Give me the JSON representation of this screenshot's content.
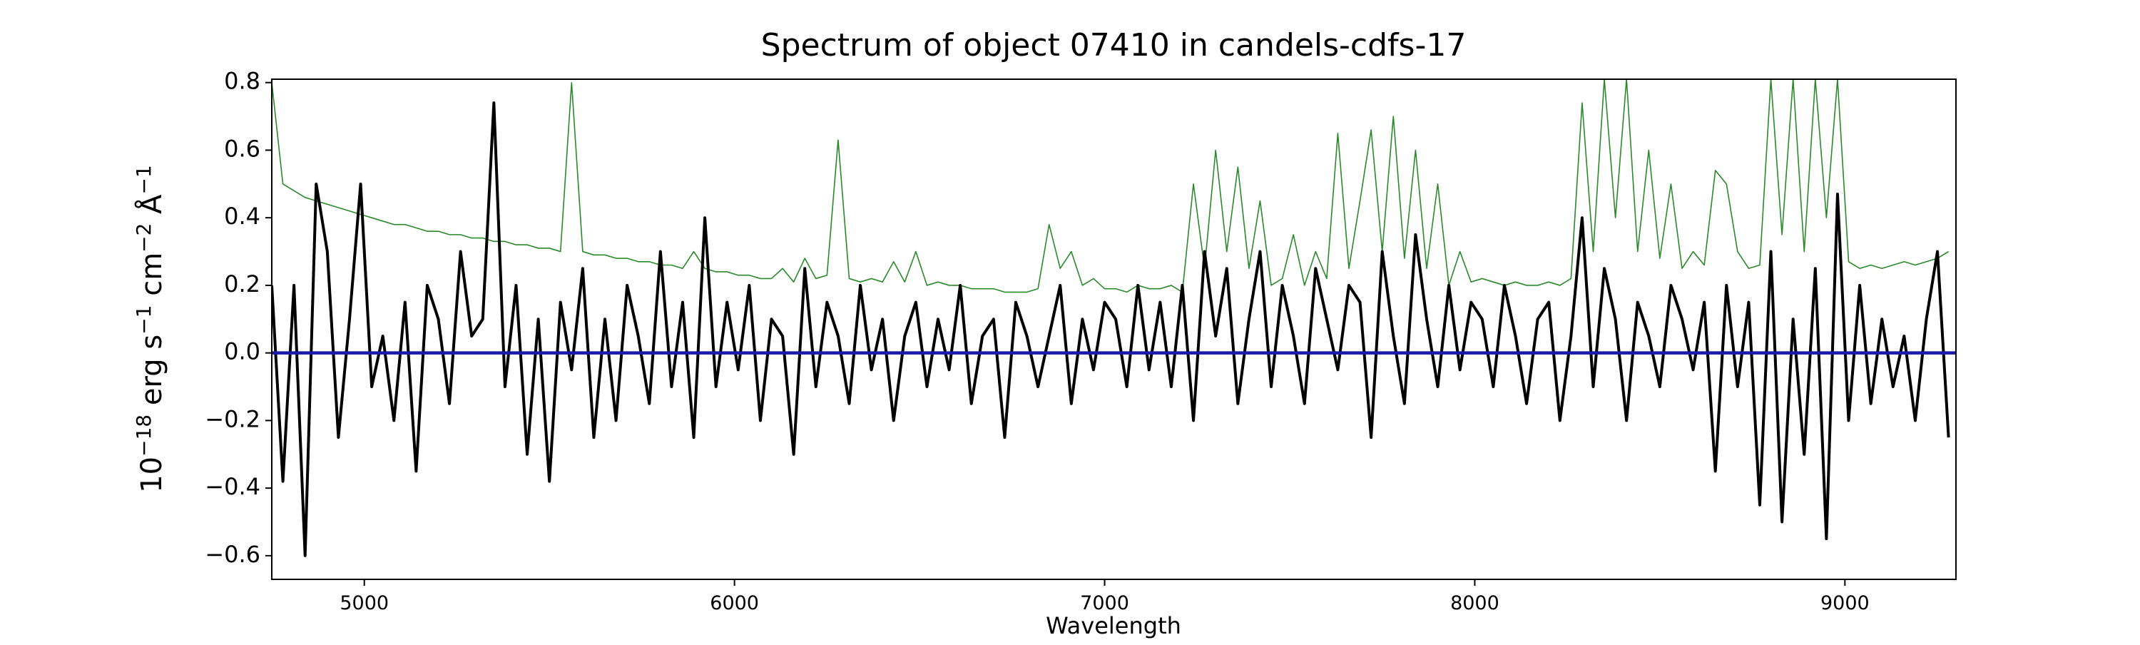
{
  "chart_data": {
    "type": "line",
    "title": "Spectrum of object 07410 in candels-cdfs-17",
    "xlabel": "Wavelength",
    "ylabel": [
      "10",
      "−18",
      " erg s",
      "−1",
      " cm",
      "−2",
      " Å",
      "−1"
    ],
    "xlim": [
      4750,
      9300
    ],
    "ylim": [
      -0.67,
      0.81
    ],
    "xticks": [
      5000,
      6000,
      7000,
      8000,
      9000
    ],
    "yticks": [
      {
        "value": -0.6,
        "label": "−0.6"
      },
      {
        "value": -0.4,
        "label": "−0.4"
      },
      {
        "value": -0.2,
        "label": "−0.2"
      },
      {
        "value": 0,
        "label": "0.0"
      },
      0.2,
      0.4,
      0.6,
      0.8
    ],
    "grid": false,
    "x": [
      4750,
      4780,
      4810,
      4840,
      4870,
      4900,
      4930,
      4960,
      4990,
      5020,
      5050,
      5080,
      5110,
      5140,
      5170,
      5200,
      5230,
      5260,
      5290,
      5320,
      5350,
      5380,
      5410,
      5440,
      5470,
      5500,
      5530,
      5560,
      5590,
      5620,
      5650,
      5680,
      5710,
      5740,
      5770,
      5800,
      5830,
      5860,
      5890,
      5920,
      5950,
      5980,
      6010,
      6040,
      6070,
      6100,
      6130,
      6160,
      6190,
      6220,
      6250,
      6280,
      6310,
      6340,
      6370,
      6400,
      6430,
      6460,
      6490,
      6520,
      6550,
      6580,
      6610,
      6640,
      6670,
      6700,
      6730,
      6760,
      6790,
      6820,
      6850,
      6880,
      6910,
      6940,
      6970,
      7000,
      7030,
      7060,
      7090,
      7120,
      7150,
      7180,
      7210,
      7240,
      7270,
      7300,
      7330,
      7360,
      7390,
      7420,
      7450,
      7480,
      7510,
      7540,
      7570,
      7600,
      7630,
      7660,
      7690,
      7720,
      7750,
      7780,
      7810,
      7840,
      7870,
      7900,
      7930,
      7960,
      7990,
      8020,
      8050,
      8080,
      8110,
      8140,
      8170,
      8200,
      8230,
      8260,
      8290,
      8320,
      8350,
      8380,
      8410,
      8440,
      8470,
      8500,
      8530,
      8560,
      8590,
      8620,
      8650,
      8680,
      8710,
      8740,
      8770,
      8800,
      8830,
      8860,
      8890,
      8920,
      8950,
      8980,
      9010,
      9040,
      9070,
      9100,
      9130,
      9160,
      9190,
      9220,
      9250,
      9280
    ],
    "series": [
      {
        "color": "#2a8a2a",
        "width": 1.6,
        "values": [
          0.8,
          0.5,
          0.48,
          0.46,
          0.45,
          0.44,
          0.43,
          0.42,
          0.41,
          0.4,
          0.39,
          0.38,
          0.38,
          0.37,
          0.36,
          0.36,
          0.35,
          0.35,
          0.34,
          0.34,
          0.33,
          0.33,
          0.32,
          0.32,
          0.31,
          0.31,
          0.3,
          0.8,
          0.3,
          0.29,
          0.29,
          0.28,
          0.28,
          0.27,
          0.27,
          0.26,
          0.26,
          0.25,
          0.3,
          0.25,
          0.24,
          0.24,
          0.23,
          0.23,
          0.22,
          0.22,
          0.25,
          0.21,
          0.28,
          0.22,
          0.23,
          0.63,
          0.22,
          0.21,
          0.22,
          0.21,
          0.27,
          0.21,
          0.3,
          0.2,
          0.21,
          0.2,
          0.2,
          0.19,
          0.19,
          0.19,
          0.18,
          0.18,
          0.18,
          0.19,
          0.38,
          0.25,
          0.3,
          0.2,
          0.22,
          0.19,
          0.19,
          0.18,
          0.2,
          0.19,
          0.19,
          0.2,
          0.18,
          0.5,
          0.25,
          0.6,
          0.3,
          0.55,
          0.25,
          0.45,
          0.2,
          0.22,
          0.35,
          0.2,
          0.3,
          0.22,
          0.65,
          0.25,
          0.45,
          0.66,
          0.3,
          0.7,
          0.28,
          0.6,
          0.25,
          0.5,
          0.2,
          0.3,
          0.21,
          0.22,
          0.21,
          0.2,
          0.21,
          0.2,
          0.2,
          0.21,
          0.2,
          0.22,
          0.74,
          0.3,
          0.81,
          0.4,
          0.81,
          0.3,
          0.6,
          0.28,
          0.5,
          0.25,
          0.3,
          0.26,
          0.54,
          0.5,
          0.3,
          0.25,
          0.26,
          0.81,
          0.35,
          0.81,
          0.3,
          0.81,
          0.4,
          0.81,
          0.27,
          0.25,
          0.26,
          0.25,
          0.26,
          0.27,
          0.26,
          0.27,
          0.28,
          0.3
        ]
      },
      {
        "color": "#000000",
        "width": 4,
        "values": [
          0.2,
          -0.38,
          0.2,
          -0.6,
          0.5,
          0.3,
          -0.25,
          0.1,
          0.5,
          -0.1,
          0.05,
          -0.2,
          0.15,
          -0.35,
          0.2,
          0.1,
          -0.15,
          0.3,
          0.05,
          0.1,
          0.74,
          -0.1,
          0.2,
          -0.3,
          0.1,
          -0.38,
          0.15,
          -0.05,
          0.25,
          -0.25,
          0.1,
          -0.2,
          0.2,
          0.05,
          -0.15,
          0.3,
          -0.1,
          0.15,
          -0.25,
          0.4,
          -0.1,
          0.15,
          -0.05,
          0.2,
          -0.2,
          0.1,
          0.05,
          -0.3,
          0.25,
          -0.1,
          0.15,
          0.05,
          -0.15,
          0.2,
          -0.05,
          0.1,
          -0.2,
          0.05,
          0.15,
          -0.1,
          0.1,
          -0.05,
          0.2,
          -0.15,
          0.05,
          0.1,
          -0.25,
          0.15,
          0.05,
          -0.1,
          0.05,
          0.2,
          -0.15,
          0.1,
          -0.05,
          0.15,
          0.1,
          -0.1,
          0.2,
          -0.05,
          0.15,
          -0.1,
          0.2,
          -0.2,
          0.3,
          0.05,
          0.25,
          -0.15,
          0.1,
          0.3,
          -0.1,
          0.2,
          0.05,
          -0.15,
          0.25,
          0.1,
          -0.05,
          0.2,
          0.15,
          -0.25,
          0.3,
          0.05,
          -0.15,
          0.35,
          0.1,
          -0.1,
          0.2,
          -0.05,
          0.15,
          0.1,
          -0.1,
          0.2,
          0.05,
          -0.15,
          0.1,
          0.15,
          -0.2,
          0.05,
          0.4,
          -0.1,
          0.25,
          0.1,
          -0.2,
          0.15,
          0.05,
          -0.1,
          0.2,
          0.1,
          -0.05,
          0.15,
          -0.35,
          0.2,
          -0.1,
          0.15,
          -0.45,
          0.3,
          -0.5,
          0.1,
          -0.3,
          0.25,
          -0.55,
          0.47,
          -0.2,
          0.2,
          -0.15,
          0.1,
          -0.1,
          0.05,
          -0.2,
          0.1,
          0.3,
          -0.25
        ]
      },
      {
        "color": "#1a1aa8",
        "width": 4.5,
        "x": [
          4750,
          9300
        ],
        "values": [
          0,
          0
        ]
      }
    ]
  }
}
